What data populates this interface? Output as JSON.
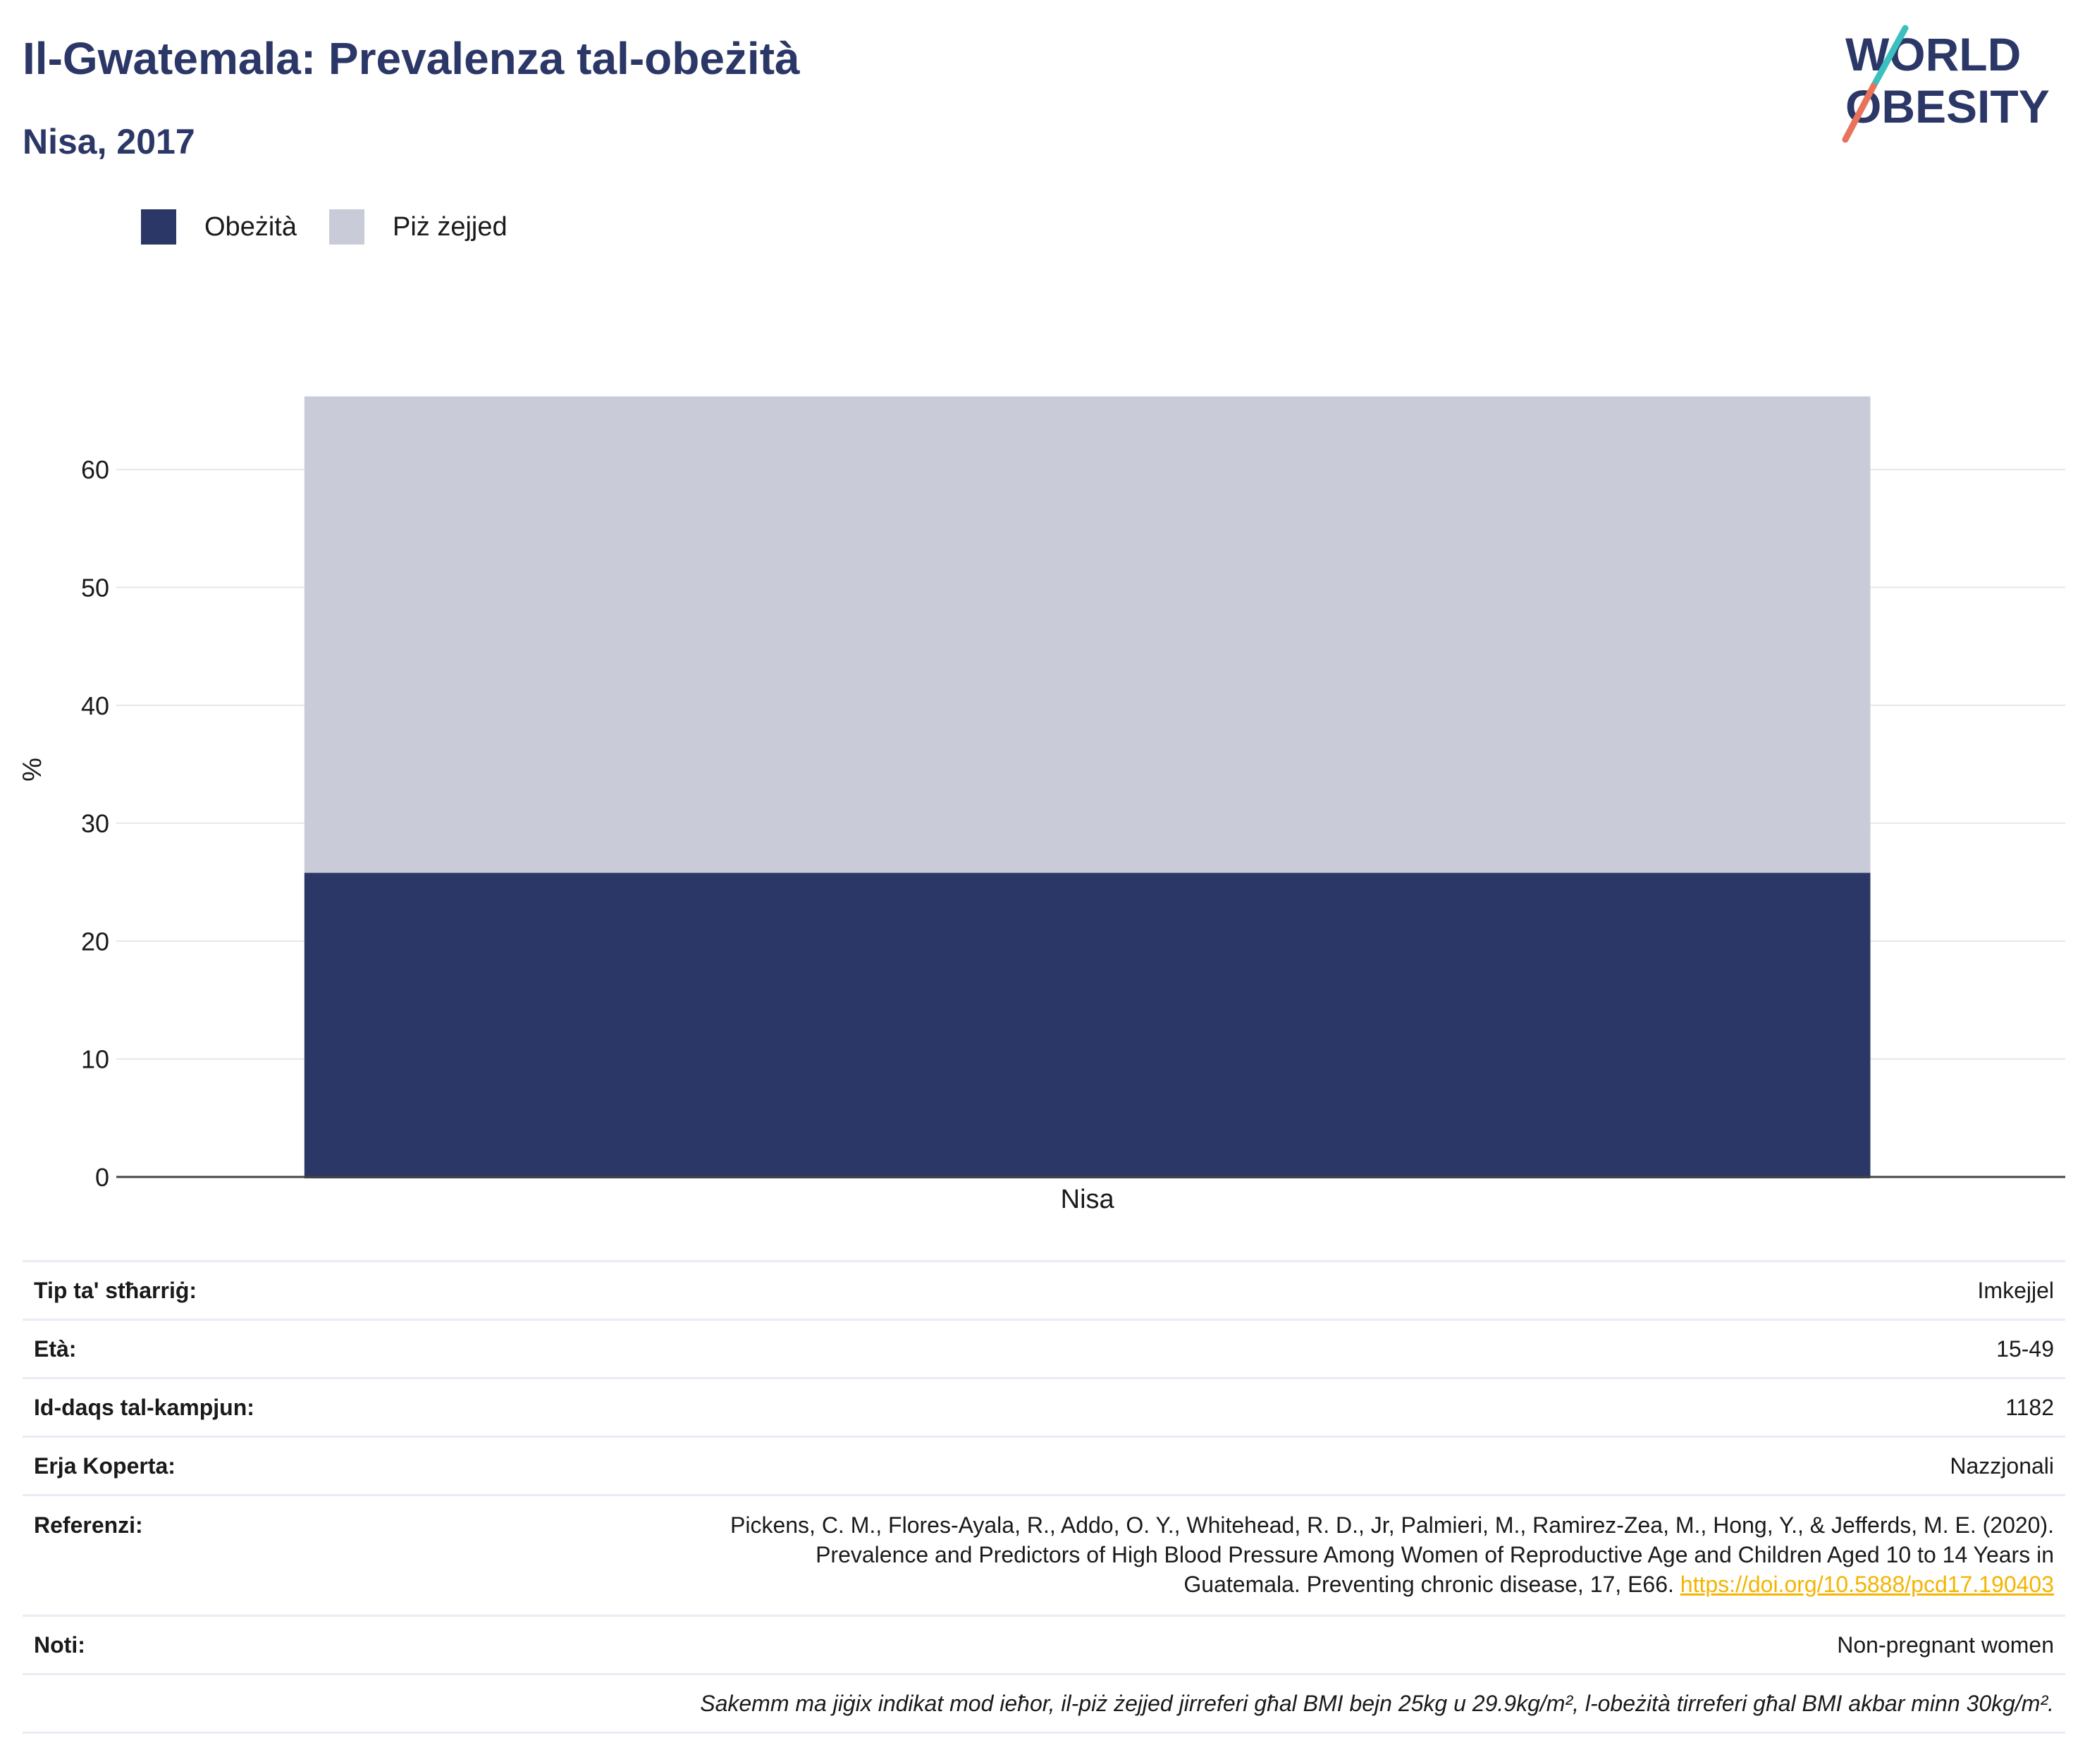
{
  "title": "Il-Gwatemala: Prevalenza tal-obeżità",
  "subtitle": "Nisa, 2017",
  "logo": {
    "line1": "WORLD",
    "line2": "OBESITY",
    "color_text": "#2b3766",
    "color_slash_top": "#3bbfbf",
    "color_slash_bottom": "#e8735a"
  },
  "legend": [
    {
      "label": "Obeżità",
      "color": "#2b3766"
    },
    {
      "label": "Piż żejjed",
      "color": "#c9ccd8"
    }
  ],
  "chart_data": {
    "type": "bar",
    "stacked": true,
    "categories": [
      "Nisa"
    ],
    "series": [
      {
        "name": "Obeżità",
        "values": [
          25.8
        ],
        "color": "#2b3766"
      },
      {
        "name": "Piż żejjed",
        "values": [
          40.4
        ],
        "color": "#c9ccd8"
      }
    ],
    "title": "Il-Gwatemala: Prevalenza tal-obeżità",
    "subtitle": "Nisa, 2017",
    "xlabel": "",
    "ylabel": "%",
    "ylim": [
      0,
      68
    ],
    "yticks": [
      0,
      10,
      20,
      30,
      40,
      50,
      60
    ],
    "grid": true,
    "legend_position": "top-left"
  },
  "table": {
    "survey_type_label": "Tip ta' stħarriġ:",
    "survey_type_value": "Imkejjel",
    "age_label": "Età:",
    "age_value": "15-49",
    "sample_label": "Id-daqs tal-kampjun:",
    "sample_value": "1182",
    "area_label": "Erja Koperta:",
    "area_value": "Nazzjonali",
    "ref_label": "Referenzi:",
    "ref_line1": "Pickens, C. M., Flores-Ayala, R., Addo, O. Y., Whitehead, R. D., Jr, Palmieri, M., Ramirez-Zea, M., Hong, Y., & Jefferds, M. E. (2020).",
    "ref_line2": "Prevalence and Predictors of High Blood Pressure Among Women of Reproductive Age and Children Aged 10 to 14 Years in",
    "ref_line3": "Guatemala. Preventing chronic disease, 17, E66.",
    "ref_link": "https://doi.org/10.5888/pcd17.190403",
    "notes_label": "Noti:",
    "notes_value": "Non-pregnant women",
    "footnote": "Sakemm ma jiġix indikat mod ieħor, il-piż żejjed jirreferi għal BMI bejn 25kg u 29.9kg/m², l-obeżità tirreferi għal BMI akbar minn 30kg/m²."
  }
}
